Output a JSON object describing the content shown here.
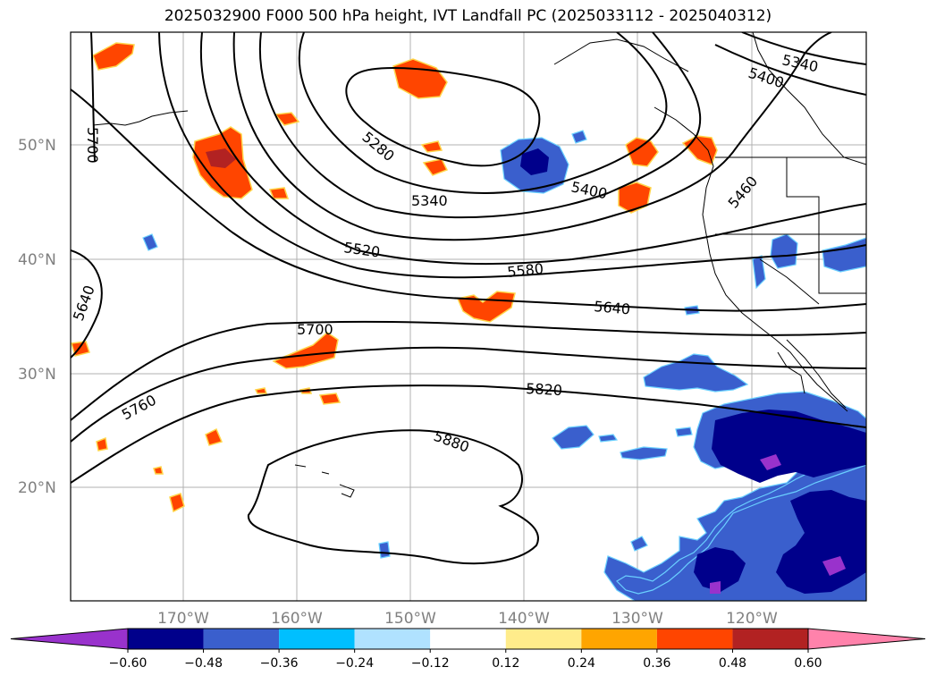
{
  "title": "2025032900 F000 500 hPa height, IVT Landfall PC (2025033112 - 2025040312)",
  "map": {
    "lat_labels": [
      "50°N",
      "40°N",
      "30°N",
      "20°N"
    ],
    "lon_labels": [
      "170°W",
      "160°W",
      "150°W",
      "140°W",
      "130°W",
      "120°W"
    ],
    "contour_labels": [
      "5280",
      "5340",
      "5340",
      "5400",
      "5400",
      "5460",
      "5520",
      "5580",
      "5640",
      "5640",
      "5700",
      "5700",
      "5760",
      "5820",
      "5880"
    ]
  },
  "colorbar": {
    "colors": [
      "#9932CC",
      "#00008B",
      "#3A5FCD",
      "#00BFFF",
      "#B0E2FF",
      "#FFFFFF",
      "#FFEC8B",
      "#FFA500",
      "#FF4500",
      "#B22222",
      "#FF82AB"
    ],
    "ticks": [
      "−0.60",
      "−0.48",
      "−0.36",
      "−0.24",
      "−0.12",
      "0.12",
      "0.24",
      "0.36",
      "0.48",
      "0.60"
    ]
  }
}
